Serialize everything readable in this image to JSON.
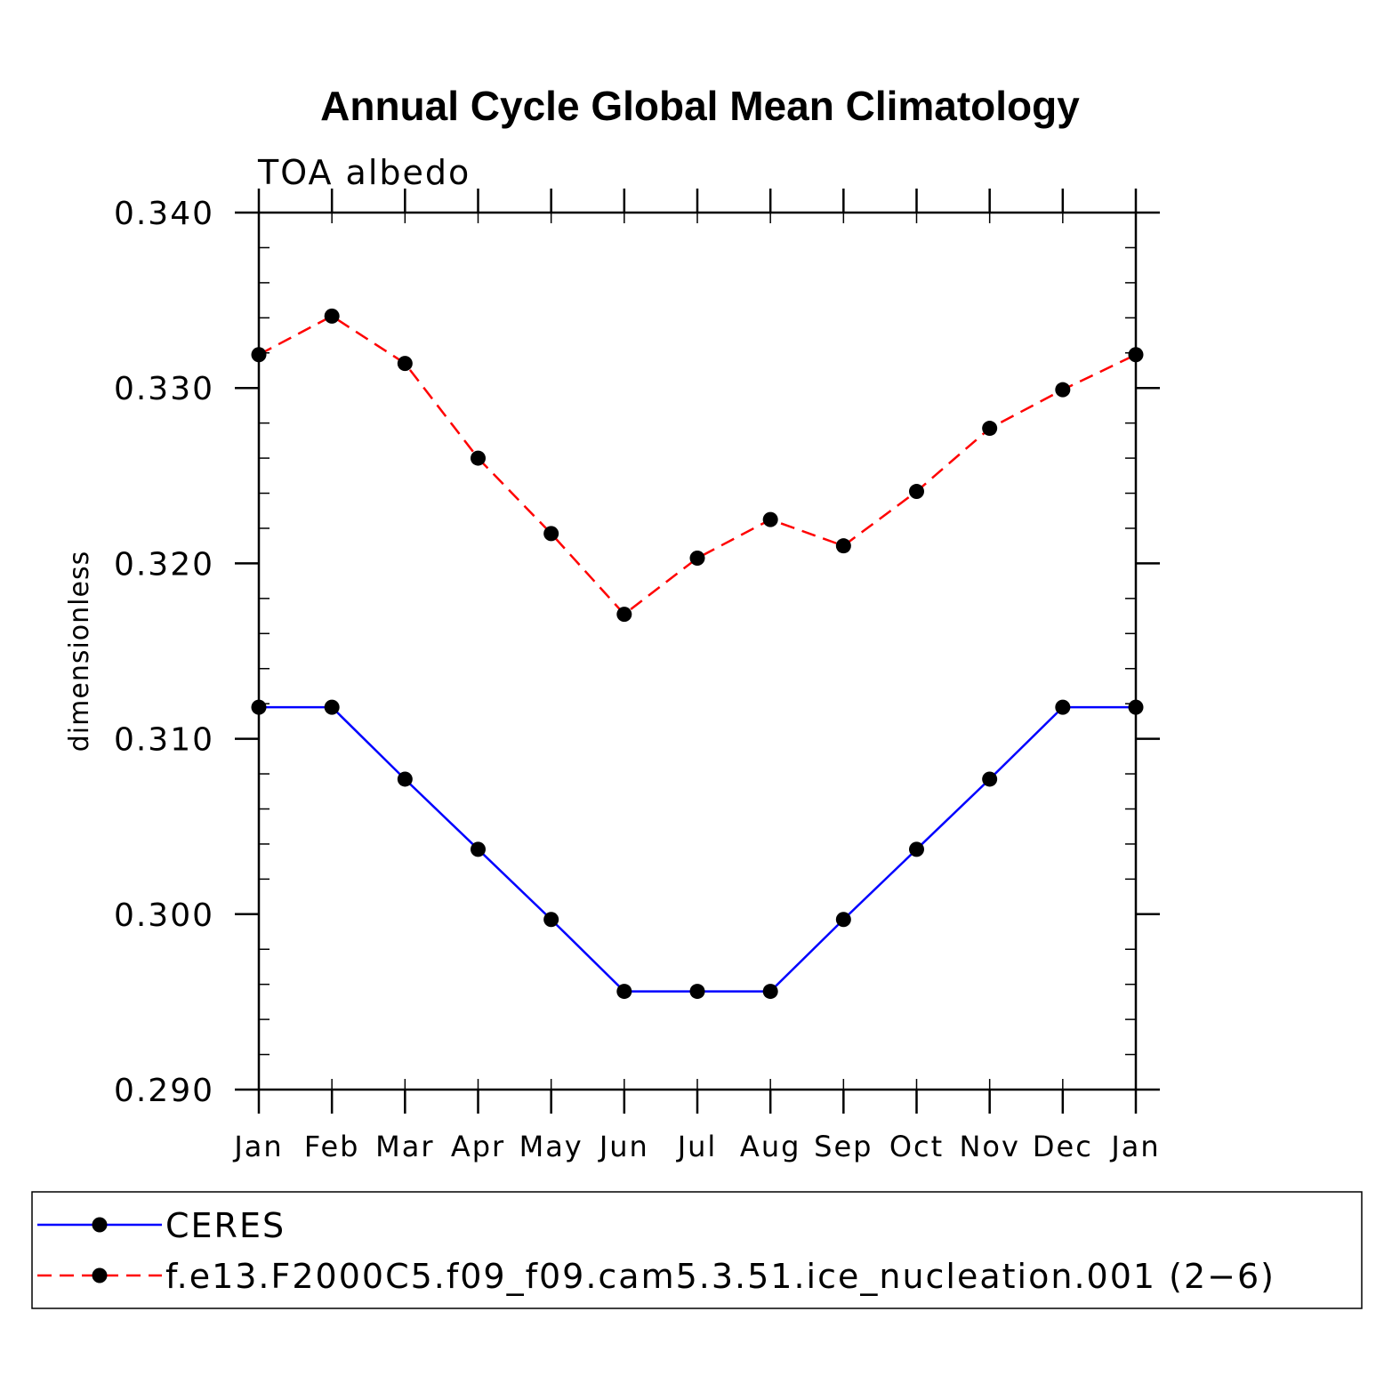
{
  "chart_data": {
    "type": "line",
    "title": "Annual Cycle Global Mean Climatology",
    "subtitle": "TOA albedo",
    "xlabel": "",
    "ylabel": "dimensionless",
    "categories": [
      "Jan",
      "Feb",
      "Mar",
      "Apr",
      "May",
      "Jun",
      "Jul",
      "Aug",
      "Sep",
      "Oct",
      "Nov",
      "Dec",
      "Jan"
    ],
    "ylim": [
      0.29,
      0.34
    ],
    "yticks": [
      0.29,
      0.3,
      0.31,
      0.32,
      0.33,
      0.34
    ],
    "ytick_labels": [
      "0.290",
      "0.300",
      "0.310",
      "0.320",
      "0.330",
      "0.340"
    ],
    "y_minor_step": 0.002,
    "series": [
      {
        "name": "CERES",
        "color": "#0000ff",
        "dash": "solid",
        "values": [
          0.3118,
          0.3118,
          0.3077,
          0.3037,
          0.2997,
          0.2956,
          0.2956,
          0.2956,
          0.2997,
          0.3037,
          0.3077,
          0.3118,
          0.3118
        ]
      },
      {
        "name": "f.e13.F2000C5.f09_f09.cam5.3.51.ice_nucleation.001 (2−6)",
        "color": "#ff0000",
        "dash": "dashed",
        "values": [
          0.3319,
          0.3341,
          0.3314,
          0.326,
          0.3217,
          0.3171,
          0.3203,
          0.3225,
          0.321,
          0.3241,
          0.3277,
          0.3299,
          0.3319
        ]
      }
    ],
    "legend_position": "bottom",
    "marker_color": "#000000"
  }
}
